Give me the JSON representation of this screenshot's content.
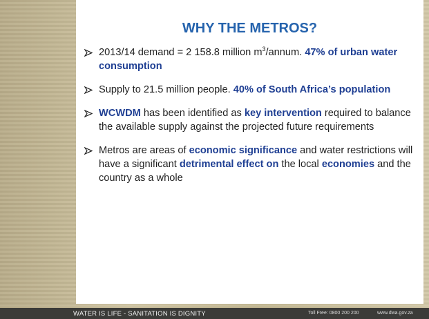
{
  "title": "WHY THE METROS?",
  "bullets": [
    [
      {
        "text": "2013/14 demand = 2 158.8 million m"
      },
      {
        "text": "3",
        "sup": true
      },
      {
        "text": "/annum. "
      },
      {
        "text": "47% of urban water consumption",
        "bold": true
      }
    ],
    [
      {
        "text": "Supply to 21.5 million people. "
      },
      {
        "text": "40% of South Africa’s population",
        "bold": true
      }
    ],
    [
      {
        "text": "WCWDM",
        "bold": true
      },
      {
        "text": " has been identified as "
      },
      {
        "text": "key intervention",
        "bold": true
      },
      {
        "text": " required to balance the available supply against the projected future requirements"
      }
    ],
    [
      {
        "text": "Metros are areas of "
      },
      {
        "text": "economic significance",
        "bold": true
      },
      {
        "text": " and water restrictions will have a significant "
      },
      {
        "text": "detrimental effect on",
        "bold": true
      },
      {
        "text": " the local "
      },
      {
        "text": "economies",
        "bold": true
      },
      {
        "text": " and the country as a whole"
      }
    ]
  ],
  "footer": {
    "slogan": "WATER IS LIFE - SANITATION IS DIGNITY",
    "toll_free": "Toll Free: 0800 200 200",
    "website": "www.dwa.gov.za"
  }
}
